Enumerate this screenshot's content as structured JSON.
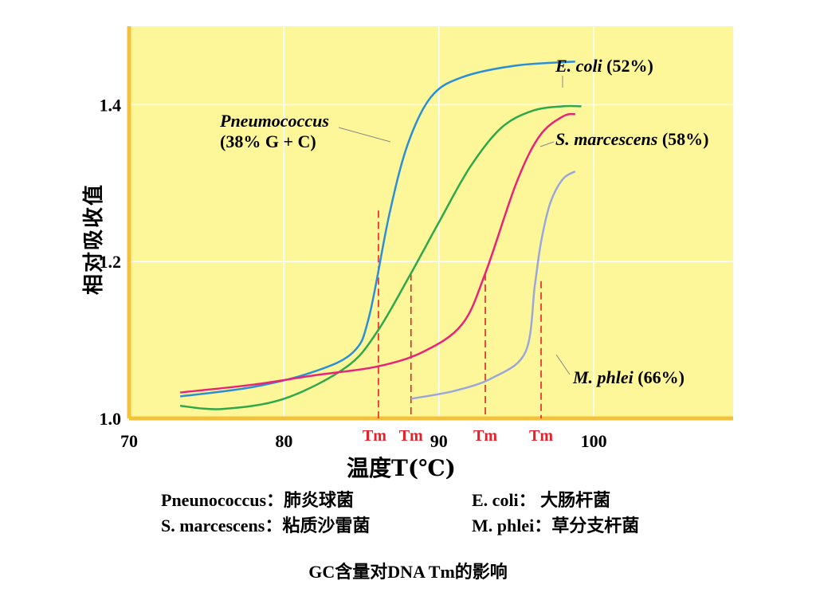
{
  "chart_data": {
    "type": "line",
    "title": "",
    "xlabel": "温度T(℃)",
    "ylabel": "相对吸收值",
    "xlim": [
      70,
      109
    ],
    "ylim": [
      1.0,
      1.5
    ],
    "x_ticks": [
      "70",
      "80",
      "90",
      "100"
    ],
    "y_ticks": [
      "1.0",
      "1.2",
      "1.4"
    ],
    "grid": true,
    "tm_label": "Tm",
    "series": [
      {
        "name": "Pneumococcus",
        "label_line1": "Pneumococcus",
        "label_line2": "(38% G + C)",
        "color": "#2a8fd6",
        "x": [
          73.3,
          78,
          82,
          84.5,
          85.5,
          86.8,
          88,
          89.5,
          91.5,
          95,
          98.8
        ],
        "y": [
          1.028,
          1.04,
          1.06,
          1.085,
          1.13,
          1.26,
          1.35,
          1.41,
          1.435,
          1.45,
          1.455
        ],
        "tm": 86.1,
        "tm_y": 1.265
      },
      {
        "name": "E. coli",
        "label_line1": "E. coli",
        "label_line2": "(52%)",
        "color": "#2fa84a",
        "x": [
          73.3,
          76,
          80,
          84,
          86,
          88.2,
          90,
          92,
          94,
          96,
          98,
          99.2
        ],
        "y": [
          1.016,
          1.012,
          1.025,
          1.065,
          1.11,
          1.185,
          1.25,
          1.32,
          1.37,
          1.392,
          1.398,
          1.398
        ],
        "tm": 88.2,
        "tm_y": 1.185
      },
      {
        "name": "S. marcescens",
        "label_line1": "S. marcescens",
        "label_line2": "(58%)",
        "color": "#e8237a",
        "x": [
          73.3,
          78,
          82,
          86,
          89,
          91.5,
          93,
          95,
          96.5,
          98,
          98.8
        ],
        "y": [
          1.033,
          1.043,
          1.055,
          1.066,
          1.085,
          1.12,
          1.185,
          1.3,
          1.36,
          1.385,
          1.388
        ],
        "tm": 93.0,
        "tm_y": 1.185
      },
      {
        "name": "M. phlei",
        "label_line1": "M. phlei",
        "label_line2": "(66%)",
        "color": "#9aa6dc",
        "x": [
          88.2,
          91,
          93.5,
          95.6,
          96.2,
          96.6,
          97.2,
          98,
          98.8
        ],
        "y": [
          1.025,
          1.035,
          1.052,
          1.085,
          1.17,
          1.225,
          1.275,
          1.305,
          1.315
        ],
        "tm": 96.6,
        "tm_y": 1.175
      }
    ]
  },
  "legend": {
    "row1_left": "Pneunococcus：肺炎球菌",
    "row1_right": "E. coli： 大肠杆菌",
    "row2_left": "S. marcescens：粘质沙雷菌",
    "row2_right": "M. phlei：草分支杆菌"
  },
  "caption": "GC含量对DNA Tm的影响"
}
